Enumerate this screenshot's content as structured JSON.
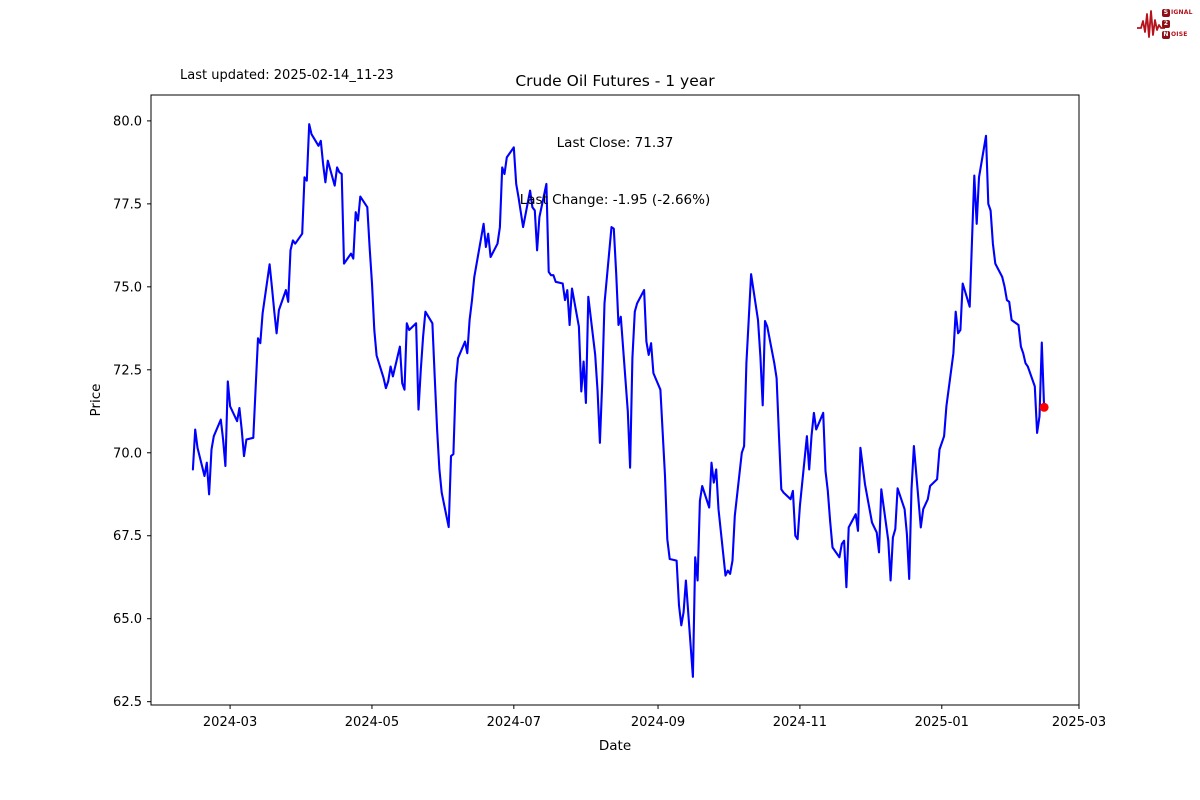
{
  "header": {
    "last_updated": "Last updated: 2025-02-14_11-23"
  },
  "logo": {
    "signal_initial": "S",
    "signal_rest": "IGNAL",
    "two": "2",
    "noise_initial": "N",
    "noise_rest": "OISE",
    "color": "#b5121b",
    "box_color": "#8f0e16"
  },
  "chart_data": {
    "type": "line",
    "title": "Crude Oil Futures - 1 year",
    "annotation_line1": "Last Close: 71.37",
    "annotation_line2": "Last Change: -1.95 (-2.66%)",
    "xlabel": "Date",
    "ylabel": "Price",
    "last_close": 71.37,
    "last_change": -1.95,
    "last_change_pct": -2.66,
    "line_color": "#0000ff",
    "marker_color": "#ff0000",
    "axis_color": "#000000",
    "background": "#ffffff",
    "grid": false,
    "legend": "none",
    "xlim": [
      "2024-01-27",
      "2025-03-01"
    ],
    "ylim": [
      62.4,
      80.78
    ],
    "yticks": [
      {
        "v": 62.5,
        "label": "62.5"
      },
      {
        "v": 65.0,
        "label": "65.0"
      },
      {
        "v": 67.5,
        "label": "67.5"
      },
      {
        "v": 70.0,
        "label": "70.0"
      },
      {
        "v": 72.5,
        "label": "72.5"
      },
      {
        "v": 75.0,
        "label": "75.0"
      },
      {
        "v": 77.5,
        "label": "77.5"
      },
      {
        "v": 80.0,
        "label": "80.0"
      }
    ],
    "xticks": [
      {
        "date": "2024-03-01",
        "label": "2024-03"
      },
      {
        "date": "2024-05-01",
        "label": "2024-05"
      },
      {
        "date": "2024-07-01",
        "label": "2024-07"
      },
      {
        "date": "2024-09-01",
        "label": "2024-09"
      },
      {
        "date": "2024-11-01",
        "label": "2024-11"
      },
      {
        "date": "2025-01-01",
        "label": "2025-01"
      },
      {
        "date": "2025-03-01",
        "label": "2025-03"
      }
    ],
    "series_name": "Crude Oil Futures",
    "points": [
      [
        "2024-02-14",
        69.5
      ],
      [
        "2024-02-15",
        70.7
      ],
      [
        "2024-02-16",
        70.15
      ],
      [
        "2024-02-19",
        69.3
      ],
      [
        "2024-02-20",
        69.7
      ],
      [
        "2024-02-21",
        68.75
      ],
      [
        "2024-02-22",
        70.1
      ],
      [
        "2024-02-23",
        70.5
      ],
      [
        "2024-02-26",
        71.0
      ],
      [
        "2024-02-27",
        70.4
      ],
      [
        "2024-02-28",
        69.6
      ],
      [
        "2024-02-29",
        72.15
      ],
      [
        "2024-03-01",
        71.4
      ],
      [
        "2024-03-04",
        70.95
      ],
      [
        "2024-03-05",
        71.35
      ],
      [
        "2024-03-06",
        70.7
      ],
      [
        "2024-03-07",
        69.9
      ],
      [
        "2024-03-08",
        70.4
      ],
      [
        "2024-03-11",
        70.45
      ],
      [
        "2024-03-12",
        72.0
      ],
      [
        "2024-03-13",
        73.45
      ],
      [
        "2024-03-14",
        73.3
      ],
      [
        "2024-03-15",
        74.2
      ],
      [
        "2024-03-18",
        75.68
      ],
      [
        "2024-03-19",
        75.0
      ],
      [
        "2024-03-20",
        74.25
      ],
      [
        "2024-03-21",
        73.6
      ],
      [
        "2024-03-22",
        74.3
      ],
      [
        "2024-03-25",
        74.9
      ],
      [
        "2024-03-26",
        74.55
      ],
      [
        "2024-03-27",
        76.1
      ],
      [
        "2024-03-28",
        76.4
      ],
      [
        "2024-03-29",
        76.3
      ],
      [
        "2024-04-01",
        76.6
      ],
      [
        "2024-04-02",
        78.3
      ],
      [
        "2024-04-03",
        78.2
      ],
      [
        "2024-04-04",
        79.9
      ],
      [
        "2024-04-05",
        79.6
      ],
      [
        "2024-04-08",
        79.25
      ],
      [
        "2024-04-09",
        79.4
      ],
      [
        "2024-04-10",
        78.7
      ],
      [
        "2024-04-11",
        78.15
      ],
      [
        "2024-04-12",
        78.8
      ],
      [
        "2024-04-15",
        78.05
      ],
      [
        "2024-04-16",
        78.6
      ],
      [
        "2024-04-17",
        78.45
      ],
      [
        "2024-04-18",
        78.4
      ],
      [
        "2024-04-19",
        75.7
      ],
      [
        "2024-04-22",
        76.0
      ],
      [
        "2024-04-23",
        75.85
      ],
      [
        "2024-04-24",
        77.25
      ],
      [
        "2024-04-25",
        77.0
      ],
      [
        "2024-04-26",
        77.72
      ],
      [
        "2024-04-29",
        77.4
      ],
      [
        "2024-04-30",
        76.2
      ],
      [
        "2024-05-01",
        75.1
      ],
      [
        "2024-05-02",
        73.7
      ],
      [
        "2024-05-03",
        72.93
      ],
      [
        "2024-05-06",
        72.25
      ],
      [
        "2024-05-07",
        71.95
      ],
      [
        "2024-05-08",
        72.15
      ],
      [
        "2024-05-09",
        72.6
      ],
      [
        "2024-05-10",
        72.3
      ],
      [
        "2024-05-13",
        73.2
      ],
      [
        "2024-05-14",
        72.1
      ],
      [
        "2024-05-15",
        71.9
      ],
      [
        "2024-05-16",
        73.9
      ],
      [
        "2024-05-17",
        73.7
      ],
      [
        "2024-05-20",
        73.9
      ],
      [
        "2024-05-21",
        71.3
      ],
      [
        "2024-05-22",
        72.5
      ],
      [
        "2024-05-23",
        73.5
      ],
      [
        "2024-05-24",
        74.25
      ],
      [
        "2024-05-27",
        73.9
      ],
      [
        "2024-05-28",
        72.3
      ],
      [
        "2024-05-29",
        70.7
      ],
      [
        "2024-05-30",
        69.5
      ],
      [
        "2024-05-31",
        68.8
      ],
      [
        "2024-06-03",
        67.76
      ],
      [
        "2024-06-04",
        69.9
      ],
      [
        "2024-06-05",
        69.96
      ],
      [
        "2024-06-06",
        72.1
      ],
      [
        "2024-06-07",
        72.85
      ],
      [
        "2024-06-10",
        73.35
      ],
      [
        "2024-06-11",
        73.0
      ],
      [
        "2024-06-12",
        74.0
      ],
      [
        "2024-06-13",
        74.6
      ],
      [
        "2024-06-14",
        75.3
      ],
      [
        "2024-06-17",
        76.5
      ],
      [
        "2024-06-18",
        76.9
      ],
      [
        "2024-06-19",
        76.2
      ],
      [
        "2024-06-20",
        76.6
      ],
      [
        "2024-06-21",
        75.9
      ],
      [
        "2024-06-24",
        76.3
      ],
      [
        "2024-06-25",
        76.8
      ],
      [
        "2024-06-26",
        78.6
      ],
      [
        "2024-06-27",
        78.4
      ],
      [
        "2024-06-28",
        78.9
      ],
      [
        "2024-07-01",
        79.2
      ],
      [
        "2024-07-02",
        78.1
      ],
      [
        "2024-07-03",
        77.7
      ],
      [
        "2024-07-05",
        76.8
      ],
      [
        "2024-07-08",
        77.9
      ],
      [
        "2024-07-09",
        77.4
      ],
      [
        "2024-07-10",
        77.3
      ],
      [
        "2024-07-11",
        76.1
      ],
      [
        "2024-07-12",
        77.1
      ],
      [
        "2024-07-15",
        78.1
      ],
      [
        "2024-07-16",
        75.45
      ],
      [
        "2024-07-17",
        75.35
      ],
      [
        "2024-07-18",
        75.35
      ],
      [
        "2024-07-19",
        75.15
      ],
      [
        "2024-07-22",
        75.1
      ],
      [
        "2024-07-23",
        74.6
      ],
      [
        "2024-07-24",
        74.9
      ],
      [
        "2024-07-25",
        73.85
      ],
      [
        "2024-07-26",
        74.95
      ],
      [
        "2024-07-29",
        73.8
      ],
      [
        "2024-07-30",
        71.85
      ],
      [
        "2024-07-31",
        72.75
      ],
      [
        "2024-08-01",
        71.5
      ],
      [
        "2024-08-02",
        74.7
      ],
      [
        "2024-08-05",
        72.95
      ],
      [
        "2024-08-06",
        71.85
      ],
      [
        "2024-08-07",
        70.3
      ],
      [
        "2024-08-08",
        72.1
      ],
      [
        "2024-08-09",
        74.5
      ],
      [
        "2024-08-12",
        76.8
      ],
      [
        "2024-08-13",
        76.75
      ],
      [
        "2024-08-14",
        75.4
      ],
      [
        "2024-08-15",
        73.85
      ],
      [
        "2024-08-16",
        74.1
      ],
      [
        "2024-08-19",
        71.25
      ],
      [
        "2024-08-20",
        69.55
      ],
      [
        "2024-08-21",
        72.85
      ],
      [
        "2024-08-22",
        74.25
      ],
      [
        "2024-08-23",
        74.5
      ],
      [
        "2024-08-26",
        74.9
      ],
      [
        "2024-08-27",
        73.35
      ],
      [
        "2024-08-28",
        72.95
      ],
      [
        "2024-08-29",
        73.3
      ],
      [
        "2024-08-30",
        72.4
      ],
      [
        "2024-09-02",
        71.9
      ],
      [
        "2024-09-03",
        70.6
      ],
      [
        "2024-09-04",
        69.3
      ],
      [
        "2024-09-05",
        67.4
      ],
      [
        "2024-09-06",
        66.8
      ],
      [
        "2024-09-09",
        66.75
      ],
      [
        "2024-09-10",
        65.4
      ],
      [
        "2024-09-11",
        64.8
      ],
      [
        "2024-09-12",
        65.2
      ],
      [
        "2024-09-13",
        66.15
      ],
      [
        "2024-09-16",
        63.25
      ],
      [
        "2024-09-17",
        66.85
      ],
      [
        "2024-09-18",
        66.15
      ],
      [
        "2024-09-19",
        68.55
      ],
      [
        "2024-09-20",
        69.0
      ],
      [
        "2024-09-23",
        68.35
      ],
      [
        "2024-09-24",
        69.7
      ],
      [
        "2024-09-25",
        69.1
      ],
      [
        "2024-09-26",
        69.5
      ],
      [
        "2024-09-27",
        68.3
      ],
      [
        "2024-09-30",
        66.3
      ],
      [
        "2024-10-01",
        66.45
      ],
      [
        "2024-10-02",
        66.35
      ],
      [
        "2024-10-03",
        66.75
      ],
      [
        "2024-10-04",
        68.1
      ],
      [
        "2024-10-07",
        70.0
      ],
      [
        "2024-10-08",
        70.2
      ],
      [
        "2024-10-09",
        72.7
      ],
      [
        "2024-10-10",
        74.0
      ],
      [
        "2024-10-11",
        75.38
      ],
      [
        "2024-10-14",
        74.0
      ],
      [
        "2024-10-15",
        72.9
      ],
      [
        "2024-10-16",
        71.43
      ],
      [
        "2024-10-17",
        73.97
      ],
      [
        "2024-10-18",
        73.8
      ],
      [
        "2024-10-21",
        72.7
      ],
      [
        "2024-10-22",
        72.25
      ],
      [
        "2024-10-23",
        70.5
      ],
      [
        "2024-10-24",
        68.9
      ],
      [
        "2024-10-25",
        68.8
      ],
      [
        "2024-10-28",
        68.6
      ],
      [
        "2024-10-29",
        68.85
      ],
      [
        "2024-10-30",
        67.5
      ],
      [
        "2024-10-31",
        67.4
      ],
      [
        "2024-11-01",
        68.4
      ],
      [
        "2024-11-04",
        70.5
      ],
      [
        "2024-11-05",
        69.5
      ],
      [
        "2024-11-06",
        70.5
      ],
      [
        "2024-11-07",
        71.2
      ],
      [
        "2024-11-08",
        70.7
      ],
      [
        "2024-11-11",
        71.2
      ],
      [
        "2024-11-12",
        69.45
      ],
      [
        "2024-11-13",
        68.85
      ],
      [
        "2024-11-14",
        67.95
      ],
      [
        "2024-11-15",
        67.15
      ],
      [
        "2024-11-18",
        66.85
      ],
      [
        "2024-11-19",
        67.25
      ],
      [
        "2024-11-20",
        67.35
      ],
      [
        "2024-11-21",
        65.95
      ],
      [
        "2024-11-22",
        67.75
      ],
      [
        "2024-11-25",
        68.15
      ],
      [
        "2024-11-26",
        67.65
      ],
      [
        "2024-11-27",
        70.15
      ],
      [
        "2024-11-29",
        69.05
      ],
      [
        "2024-12-02",
        67.9
      ],
      [
        "2024-12-03",
        67.75
      ],
      [
        "2024-12-04",
        67.6
      ],
      [
        "2024-12-05",
        67.0
      ],
      [
        "2024-12-06",
        68.9
      ],
      [
        "2024-12-09",
        67.35
      ],
      [
        "2024-12-10",
        66.15
      ],
      [
        "2024-12-11",
        67.45
      ],
      [
        "2024-12-12",
        67.7
      ],
      [
        "2024-12-13",
        68.93
      ],
      [
        "2024-12-16",
        68.3
      ],
      [
        "2024-12-17",
        67.55
      ],
      [
        "2024-12-18",
        66.2
      ],
      [
        "2024-12-19",
        68.9
      ],
      [
        "2024-12-20",
        70.2
      ],
      [
        "2024-12-23",
        67.75
      ],
      [
        "2024-12-24",
        68.3
      ],
      [
        "2024-12-26",
        68.6
      ],
      [
        "2024-12-27",
        69.0
      ],
      [
        "2024-12-30",
        69.2
      ],
      [
        "2024-12-31",
        70.1
      ],
      [
        "2025-01-02",
        70.5
      ],
      [
        "2025-01-03",
        71.4
      ],
      [
        "2025-01-06",
        73.0
      ],
      [
        "2025-01-07",
        74.25
      ],
      [
        "2025-01-08",
        73.6
      ],
      [
        "2025-01-09",
        73.7
      ],
      [
        "2025-01-10",
        75.1
      ],
      [
        "2025-01-13",
        74.4
      ],
      [
        "2025-01-14",
        76.4
      ],
      [
        "2025-01-15",
        78.35
      ],
      [
        "2025-01-16",
        76.9
      ],
      [
        "2025-01-17",
        78.3
      ],
      [
        "2025-01-20",
        79.55
      ],
      [
        "2025-01-21",
        77.5
      ],
      [
        "2025-01-22",
        77.3
      ],
      [
        "2025-01-23",
        76.3
      ],
      [
        "2025-01-24",
        75.7
      ],
      [
        "2025-01-27",
        75.3
      ],
      [
        "2025-01-28",
        75.0
      ],
      [
        "2025-01-29",
        74.6
      ],
      [
        "2025-01-30",
        74.55
      ],
      [
        "2025-01-31",
        74.0
      ],
      [
        "2025-02-03",
        73.85
      ],
      [
        "2025-02-04",
        73.2
      ],
      [
        "2025-02-05",
        73.0
      ],
      [
        "2025-02-06",
        72.7
      ],
      [
        "2025-02-07",
        72.6
      ],
      [
        "2025-02-10",
        72.0
      ],
      [
        "2025-02-11",
        70.6
      ],
      [
        "2025-02-12",
        71.1
      ],
      [
        "2025-02-13",
        73.32
      ],
      [
        "2025-02-14",
        71.37
      ]
    ]
  }
}
